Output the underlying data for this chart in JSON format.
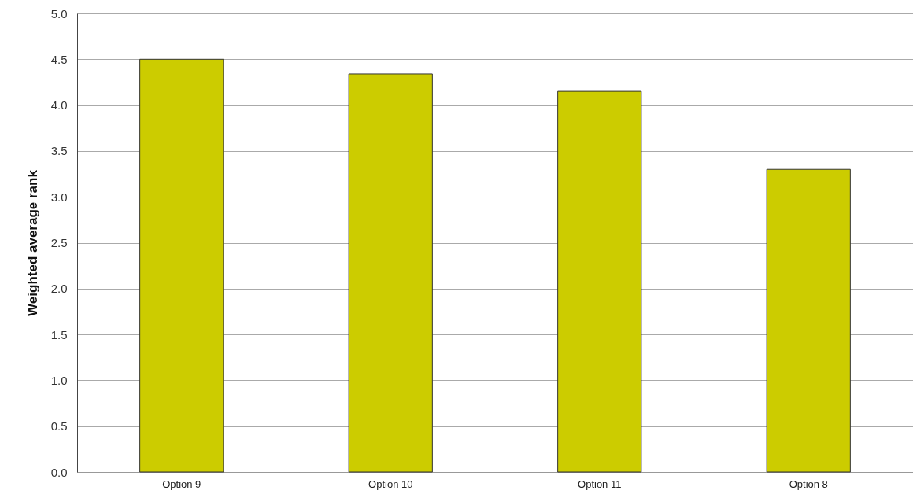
{
  "chart_data": {
    "type": "bar",
    "ylabel": "Weighted average rank",
    "categories": [
      "Option 9",
      "Option 10",
      "Option 11",
      "Option 8"
    ],
    "values": [
      4.5,
      4.34,
      4.15,
      3.3
    ],
    "color": "#cccc00",
    "ylim": [
      0,
      5
    ],
    "yticks": [
      {
        "value": 0,
        "label": "0.0"
      },
      0.5,
      {
        "value": 1,
        "label": "1.0"
      },
      1.5,
      {
        "value": 2,
        "label": "2.0"
      },
      2.5,
      {
        "value": 3,
        "label": "3.0"
      },
      3.5,
      {
        "value": 4,
        "label": "4.0"
      },
      4.5,
      {
        "value": 5,
        "label": "5.0"
      }
    ],
    "grid": "y"
  }
}
